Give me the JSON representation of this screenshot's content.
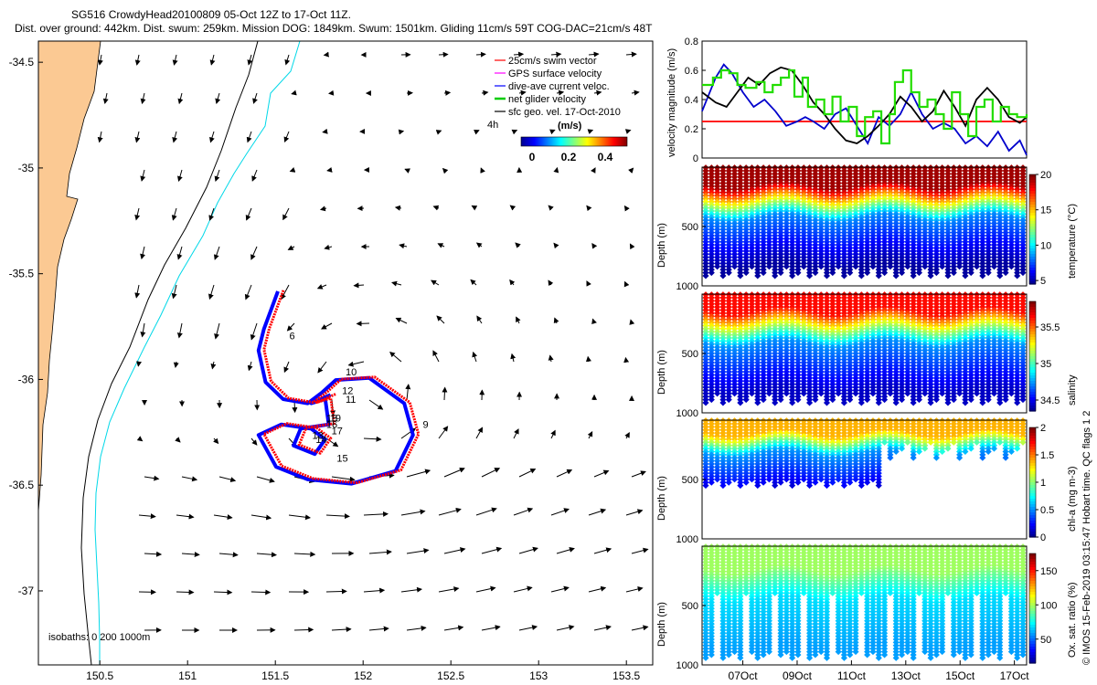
{
  "title": {
    "line1": "SG516 CrowdyHead20100809 05-Oct 12Z to 17-Oct 11Z.",
    "line2": "Dist. over ground: 442km. Dist. swum: 259km. Mission DOG: 1849km. Swum: 1501km. Gliding 11cm/s 59T COG-DAC=21cm/s 48T"
  },
  "map": {
    "xlim": [
      150.15,
      153.65
    ],
    "ylim": [
      -37.35,
      -34.4
    ],
    "xticks": [
      "150.5",
      "151",
      "151.5",
      "152",
      "152.5",
      "153",
      "153.5"
    ],
    "yticks": [
      "-34.5",
      "-35",
      "-35.5",
      "-36",
      "-36.5",
      "-37"
    ],
    "isobath_label": "isobaths: 0   200  1000m",
    "legend": [
      {
        "label": "25cm/s swim vector",
        "color": "#ff0000"
      },
      {
        "label": "GPS surface velocity",
        "color": "#ff00ff"
      },
      {
        "label": "dive-ave current veloc.",
        "color": "#0000ff"
      },
      {
        "label": "net glider velocity",
        "color": "#00cc00"
      },
      {
        "label": "sfc geo. vel. 17-Oct-2010",
        "color": "#000000"
      }
    ],
    "time_label": "4h",
    "colorbar_label": "(m/s)",
    "colorbar_ticks": [
      "0",
      "0.2",
      "0.4"
    ],
    "day_labels": [
      {
        "t": "6",
        "lon": 151.58,
        "lat": -35.81
      },
      {
        "t": "9",
        "lon": 152.34,
        "lat": -36.23
      },
      {
        "t": "10",
        "lon": 151.9,
        "lat": -35.98
      },
      {
        "t": "11",
        "lon": 151.9,
        "lat": -36.11
      },
      {
        "t": "12",
        "lon": 151.88,
        "lat": -36.07
      },
      {
        "t": "13",
        "lon": 151.71,
        "lat": -36.28
      },
      {
        "t": "14",
        "lon": 151.73,
        "lat": -36.3
      },
      {
        "t": "15",
        "lon": 151.85,
        "lat": -36.39
      },
      {
        "t": "16",
        "lon": 151.79,
        "lat": -36.23
      },
      {
        "t": "17",
        "lon": 151.82,
        "lat": -36.26
      },
      {
        "t": "18",
        "lon": 151.79,
        "lat": -36.2
      },
      {
        "t": "19",
        "lon": 151.81,
        "lat": -36.2
      }
    ]
  },
  "chart_data": [
    {
      "type": "line",
      "title": "velocity time series",
      "ylabel": "velocity magnitude (m/s)",
      "ylim": [
        0,
        0.8
      ],
      "yticks": [
        "0",
        "0.2",
        "0.4",
        "0.6",
        "0.8"
      ],
      "xlim": [
        5.5,
        17.45
      ],
      "series": [
        {
          "name": "25cm/s swim vector",
          "color": "#ff0000",
          "x": [
            5.5,
            17.45
          ],
          "values": [
            0.25,
            0.25
          ]
        },
        {
          "name": "dive-ave current veloc.",
          "color": "#0000cc",
          "x": [
            5.5,
            6.0,
            6.3,
            6.6,
            7.0,
            7.4,
            7.8,
            8.2,
            8.6,
            9.0,
            9.3,
            9.6,
            10.0,
            10.4,
            10.8,
            11.2,
            11.6,
            12.0,
            12.4,
            12.8,
            13.2,
            13.6,
            14.0,
            14.4,
            14.8,
            15.2,
            15.6,
            16.0,
            16.4,
            16.8,
            17.2,
            17.45
          ],
          "values": [
            0.32,
            0.55,
            0.64,
            0.58,
            0.45,
            0.35,
            0.4,
            0.32,
            0.22,
            0.25,
            0.28,
            0.25,
            0.2,
            0.3,
            0.34,
            0.22,
            0.1,
            0.28,
            0.22,
            0.3,
            0.45,
            0.3,
            0.2,
            0.24,
            0.2,
            0.1,
            0.15,
            0.08,
            0.18,
            0.05,
            0.12,
            0.02
          ]
        },
        {
          "name": "sfc geo. vel. (smoothed)",
          "color": "#000000",
          "x": [
            5.5,
            6.0,
            6.4,
            6.8,
            7.2,
            7.6,
            8.0,
            8.4,
            8.8,
            9.2,
            9.6,
            10.0,
            10.4,
            10.8,
            11.2,
            11.6,
            12.0,
            12.4,
            12.8,
            13.2,
            13.6,
            14.0,
            14.4,
            14.8,
            15.2,
            15.6,
            16.0,
            16.4,
            16.8,
            17.2,
            17.45
          ],
          "values": [
            0.45,
            0.38,
            0.35,
            0.45,
            0.55,
            0.5,
            0.58,
            0.62,
            0.6,
            0.5,
            0.38,
            0.3,
            0.2,
            0.12,
            0.1,
            0.15,
            0.22,
            0.3,
            0.42,
            0.35,
            0.25,
            0.32,
            0.46,
            0.35,
            0.22,
            0.4,
            0.48,
            0.4,
            0.28,
            0.24,
            0.28
          ]
        },
        {
          "name": "net glider velocity",
          "color": "#22dd00",
          "x": [
            5.5,
            5.9,
            6.2,
            6.5,
            6.8,
            7.1,
            7.5,
            7.8,
            8.1,
            8.4,
            8.7,
            8.9,
            9.2,
            9.4,
            9.7,
            10.0,
            10.3,
            10.6,
            10.9,
            11.2,
            11.5,
            11.8,
            12.1,
            12.4,
            12.6,
            12.9,
            13.2,
            13.5,
            13.8,
            14.1,
            14.4,
            14.7,
            15.0,
            15.3,
            15.6,
            15.9,
            16.2,
            16.5,
            16.8,
            17.1,
            17.45
          ],
          "values": [
            0.5,
            0.55,
            0.6,
            0.58,
            0.5,
            0.48,
            0.52,
            0.45,
            0.5,
            0.55,
            0.6,
            0.42,
            0.55,
            0.35,
            0.4,
            0.3,
            0.42,
            0.25,
            0.35,
            0.15,
            0.28,
            0.32,
            0.1,
            0.3,
            0.52,
            0.6,
            0.45,
            0.35,
            0.4,
            0.3,
            0.2,
            0.45,
            0.3,
            0.15,
            0.35,
            0.4,
            0.25,
            0.35,
            0.3,
            0.28,
            0.3
          ]
        }
      ]
    },
    {
      "type": "heatmap",
      "ylabel": "Depth (m)",
      "colorbar_label": "temperature (°C)",
      "cbar_ticks": [
        "5",
        "10",
        "15",
        "20"
      ],
      "clim": [
        4.5,
        20
      ],
      "yticks": [
        "500",
        "1000"
      ],
      "ylim": [
        0,
        1000
      ],
      "surface_value": 19.5,
      "mixed_depth": 160,
      "thermo_depth": 430,
      "deep_value": 8.5,
      "bottom_value": 5,
      "dive_depth": 920
    },
    {
      "type": "heatmap",
      "ylabel": "Depth (m)",
      "colorbar_label": "salinity",
      "cbar_ticks": [
        "34.5",
        "35",
        "35.5"
      ],
      "clim": [
        34.35,
        35.85
      ],
      "yticks": [
        "500",
        "1000"
      ],
      "ylim": [
        0,
        1000
      ],
      "surface_value": 35.65,
      "mixed_depth": 150,
      "thermo_depth": 420,
      "deep_value": 34.75,
      "bottom_value": 34.45,
      "dive_depth": 920
    },
    {
      "type": "heatmap",
      "ylabel": "Depth (m)",
      "colorbar_label": "chl-a (mg m-3)",
      "cbar_ticks": [
        "0",
        "0.5",
        "1",
        "1.5",
        "2"
      ],
      "clim": [
        0,
        2
      ],
      "yticks": [
        "500",
        "1000"
      ],
      "ylim": [
        0,
        1000
      ],
      "surface_value": 1.4,
      "mixed_depth": 120,
      "thermo_depth": 280,
      "deep_value": 0.55,
      "bottom_value": 0.05,
      "dive_depth": 560
    },
    {
      "type": "heatmap",
      "ylabel": "Depth (m)",
      "colorbar_label": "Ox. sat. ratio (%)",
      "cbar_ticks": [
        "50",
        "100",
        "150"
      ],
      "clim": [
        15,
        175
      ],
      "yticks": [
        "500",
        "1000"
      ],
      "ylim": [
        0,
        1000
      ],
      "surface_value": 100,
      "mixed_depth": 200,
      "thermo_depth": 450,
      "deep_value": 70,
      "bottom_value": 60,
      "dive_depth": 950
    }
  ],
  "time_axis": {
    "ticks": [
      "07Oct",
      "09Oct",
      "11Oct",
      "13Oct",
      "15Oct",
      "17Oct"
    ],
    "tick_days": [
      7,
      9,
      11,
      13,
      15,
      17
    ],
    "xlim": [
      5.5,
      17.45
    ]
  },
  "credit": "© IMOS 15-Feb-2019 03:15:47 Hobart time. QC flags 1  2",
  "colors": {
    "land": "#fbc993",
    "isobath_200": "#000000",
    "isobath_1000": "#00d8e8",
    "track_red": "#ff0000",
    "track_blue": "#0000ff"
  }
}
